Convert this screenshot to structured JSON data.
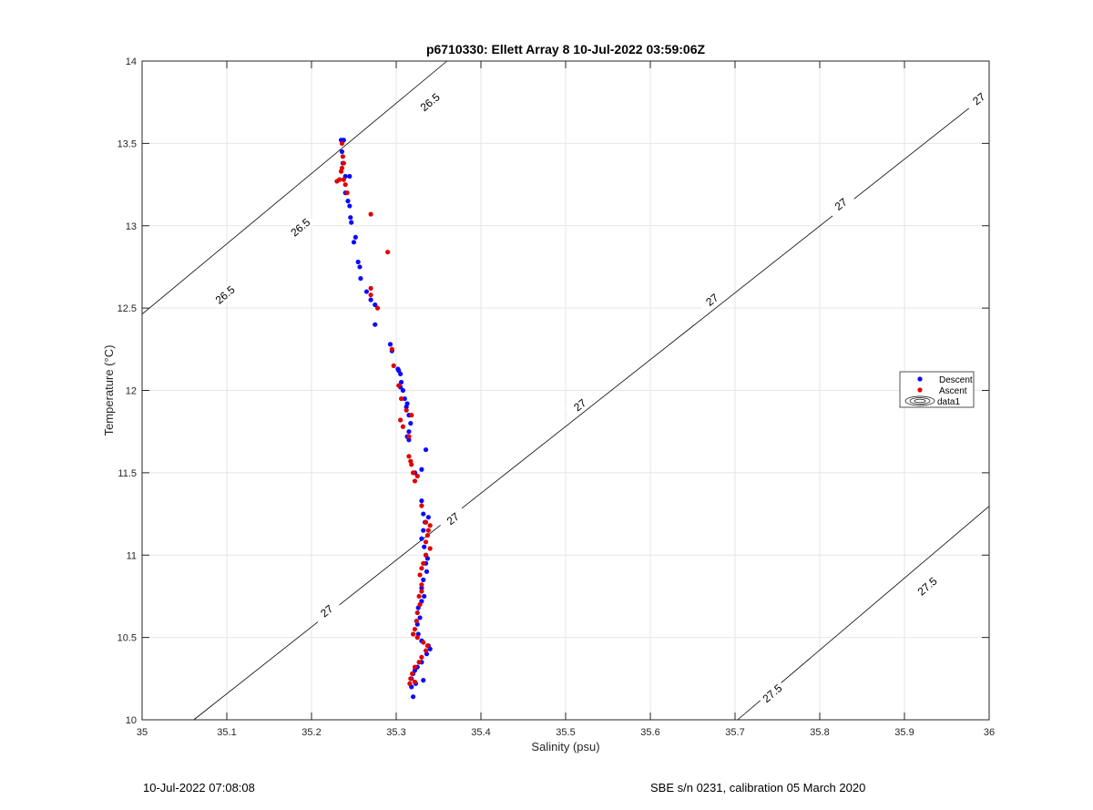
{
  "chart_data": {
    "type": "scatter",
    "title": "p6710330: Ellett Array 8 10-Jul-2022 03:59:06Z",
    "xlabel": "Salinity (psu)",
    "ylabel": "Temperature (°C)",
    "xlim": [
      35,
      36
    ],
    "ylim": [
      10,
      14
    ],
    "xticks": [
      "35",
      "35.1",
      "35.2",
      "35.3",
      "35.4",
      "35.5",
      "35.6",
      "35.7",
      "35.8",
      "35.9",
      "36"
    ],
    "yticks": [
      "10",
      "10.5",
      "11",
      "11.5",
      "12",
      "12.5",
      "13",
      "13.5",
      "14"
    ],
    "grid": true,
    "legend_position": "right",
    "legend": [
      "Descent",
      "Ascent",
      "data1"
    ],
    "colors": {
      "Descent": "#0a0aff",
      "Ascent": "#e00000",
      "contour": "#000000",
      "grid": "#e6e6e6"
    },
    "series": [
      {
        "name": "Descent",
        "points": [
          [
            35.235,
            13.52
          ],
          [
            35.238,
            13.52
          ],
          [
            35.236,
            13.45
          ],
          [
            35.237,
            13.38
          ],
          [
            35.24,
            13.3
          ],
          [
            35.245,
            13.3
          ],
          [
            35.24,
            13.2
          ],
          [
            35.243,
            13.15
          ],
          [
            35.245,
            13.12
          ],
          [
            35.246,
            13.05
          ],
          [
            35.247,
            13.02
          ],
          [
            35.252,
            12.93
          ],
          [
            35.25,
            12.9
          ],
          [
            35.255,
            12.78
          ],
          [
            35.257,
            12.75
          ],
          [
            35.258,
            12.68
          ],
          [
            35.265,
            12.6
          ],
          [
            35.27,
            12.55
          ],
          [
            35.275,
            12.52
          ],
          [
            35.275,
            12.4
          ],
          [
            35.293,
            12.28
          ],
          [
            35.295,
            12.24
          ],
          [
            35.302,
            12.13
          ],
          [
            35.303,
            12.12
          ],
          [
            35.305,
            12.1
          ],
          [
            35.306,
            12.05
          ],
          [
            35.305,
            12.02
          ],
          [
            35.308,
            12.0
          ],
          [
            35.31,
            11.95
          ],
          [
            35.313,
            11.92
          ],
          [
            35.312,
            11.9
          ],
          [
            35.315,
            11.85
          ],
          [
            35.317,
            11.8
          ],
          [
            35.315,
            11.75
          ],
          [
            35.313,
            11.72
          ],
          [
            35.315,
            11.7
          ],
          [
            35.335,
            11.64
          ],
          [
            35.322,
            11.5
          ],
          [
            35.33,
            11.52
          ],
          [
            35.33,
            11.33
          ],
          [
            35.332,
            11.25
          ],
          [
            35.334,
            11.2
          ],
          [
            35.338,
            11.23
          ],
          [
            35.332,
            11.15
          ],
          [
            35.33,
            11.1
          ],
          [
            35.333,
            11.05
          ],
          [
            35.335,
            11.0
          ],
          [
            35.337,
            10.98
          ],
          [
            35.335,
            10.95
          ],
          [
            35.336,
            10.9
          ],
          [
            35.332,
            10.85
          ],
          [
            35.33,
            10.8
          ],
          [
            35.333,
            10.75
          ],
          [
            35.33,
            10.72
          ],
          [
            35.326,
            10.68
          ],
          [
            35.328,
            10.62
          ],
          [
            35.325,
            10.58
          ],
          [
            35.326,
            10.52
          ],
          [
            35.33,
            10.48
          ],
          [
            35.338,
            10.45
          ],
          [
            35.34,
            10.43
          ],
          [
            35.336,
            10.4
          ],
          [
            35.33,
            10.35
          ],
          [
            35.325,
            10.32
          ],
          [
            35.322,
            10.3
          ],
          [
            35.32,
            10.28
          ],
          [
            35.318,
            10.25
          ],
          [
            35.323,
            10.22
          ],
          [
            35.332,
            10.24
          ],
          [
            35.318,
            10.2
          ],
          [
            35.32,
            10.14
          ]
        ]
      },
      {
        "name": "Ascent",
        "points": [
          [
            35.236,
            13.5
          ],
          [
            35.237,
            13.42
          ],
          [
            35.238,
            13.38
          ],
          [
            35.236,
            13.35
          ],
          [
            35.235,
            13.33
          ],
          [
            35.233,
            13.28
          ],
          [
            35.23,
            13.27
          ],
          [
            35.238,
            13.28
          ],
          [
            35.24,
            13.25
          ],
          [
            35.242,
            13.2
          ],
          [
            35.27,
            13.07
          ],
          [
            35.29,
            12.84
          ],
          [
            35.27,
            12.62
          ],
          [
            35.27,
            12.58
          ],
          [
            35.278,
            12.5
          ],
          [
            35.295,
            12.25
          ],
          [
            35.297,
            12.15
          ],
          [
            35.303,
            12.03
          ],
          [
            35.306,
            11.95
          ],
          [
            35.312,
            11.88
          ],
          [
            35.318,
            11.85
          ],
          [
            35.305,
            11.82
          ],
          [
            35.308,
            11.78
          ],
          [
            35.315,
            11.72
          ],
          [
            35.315,
            11.6
          ],
          [
            35.317,
            11.57
          ],
          [
            35.318,
            11.55
          ],
          [
            35.32,
            11.5
          ],
          [
            35.322,
            11.45
          ],
          [
            35.325,
            11.48
          ],
          [
            35.33,
            11.3
          ],
          [
            35.335,
            11.2
          ],
          [
            35.34,
            11.18
          ],
          [
            35.338,
            11.15
          ],
          [
            35.337,
            11.12
          ],
          [
            35.335,
            11.08
          ],
          [
            35.34,
            11.04
          ],
          [
            35.335,
            11.0
          ],
          [
            35.332,
            10.95
          ],
          [
            35.33,
            10.92
          ],
          [
            35.328,
            10.88
          ],
          [
            35.33,
            10.82
          ],
          [
            35.33,
            10.78
          ],
          [
            35.327,
            10.75
          ],
          [
            35.328,
            10.7
          ],
          [
            35.325,
            10.65
          ],
          [
            35.324,
            10.6
          ],
          [
            35.322,
            10.55
          ],
          [
            35.32,
            10.52
          ],
          [
            35.325,
            10.5
          ],
          [
            35.332,
            10.47
          ],
          [
            35.337,
            10.45
          ],
          [
            35.335,
            10.42
          ],
          [
            35.33,
            10.38
          ],
          [
            35.327,
            10.35
          ],
          [
            35.322,
            10.32
          ],
          [
            35.319,
            10.28
          ],
          [
            35.317,
            10.25
          ],
          [
            35.316,
            10.22
          ],
          [
            35.322,
            10.23
          ]
        ]
      }
    ],
    "contours": [
      {
        "value": "26.5",
        "line": [
          [
            35.0,
            12.463
          ],
          [
            35.36,
            14.0
          ]
        ],
        "labels": [
          [
            35.098,
            12.58
          ],
          [
            35.187,
            12.99
          ],
          [
            35.34,
            13.75
          ]
        ]
      },
      {
        "value": "27",
        "line": [
          [
            35.061,
            10.0
          ],
          [
            36.0,
            13.81
          ]
        ],
        "labels": [
          [
            35.218,
            10.66
          ],
          [
            35.367,
            11.22
          ],
          [
            35.517,
            11.91
          ],
          [
            35.673,
            12.55
          ],
          [
            35.825,
            13.13
          ],
          [
            35.988,
            13.77
          ]
        ]
      },
      {
        "value": "27.5",
        "line": [
          [
            35.703,
            10.0
          ],
          [
            36.0,
            11.297
          ]
        ],
        "labels": [
          [
            35.744,
            10.16
          ],
          [
            35.927,
            10.81
          ]
        ]
      }
    ]
  },
  "footer": {
    "left": "10-Jul-2022 07:08:08",
    "right": "SBE s/n 0231, calibration 05 March 2020"
  }
}
